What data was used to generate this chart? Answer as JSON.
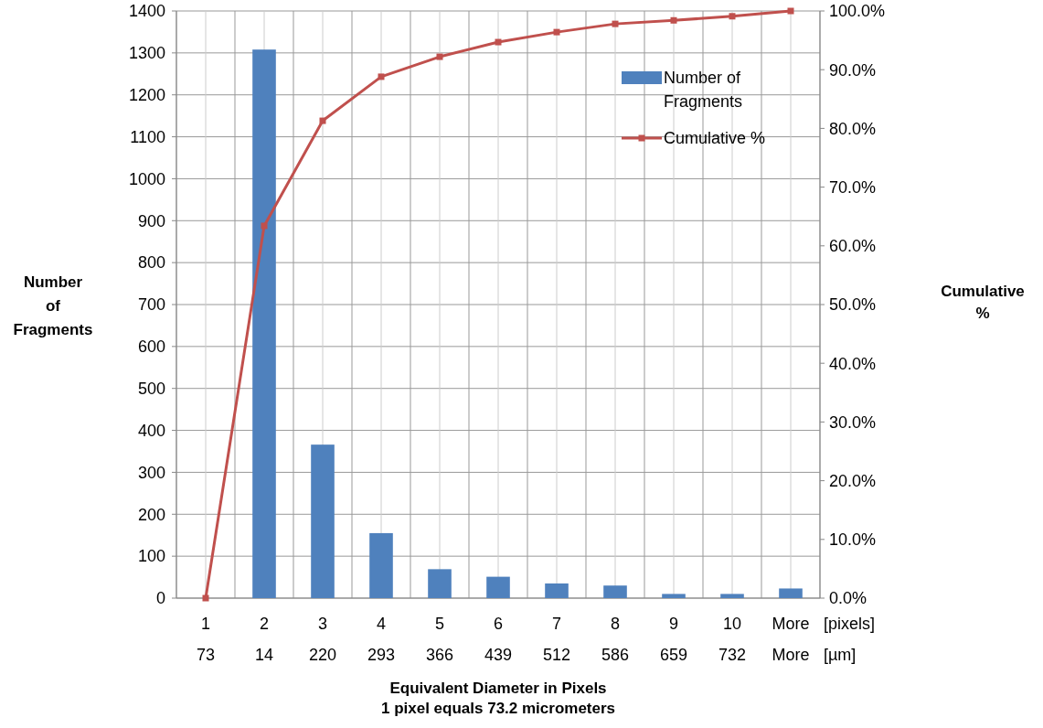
{
  "chart_data": {
    "type": "bar",
    "categories": [
      "1\n73",
      "2\n14",
      "3\n220",
      "4\n293",
      "5\n366",
      "6\n439",
      "7\n512",
      "8\n586",
      "9\n659",
      "10\n732",
      "More\nMore"
    ],
    "series": [
      {
        "name": "Number of Fragments",
        "color": "#4f81bd",
        "values": [
          null,
          1308,
          366,
          155,
          69,
          51,
          35,
          30,
          10,
          10,
          23
        ]
      },
      {
        "name": "Cumulative %",
        "type": "line",
        "axis": "y2",
        "color": "#c0504d",
        "marker": "square",
        "values": [
          0,
          63.4,
          81.3,
          88.8,
          92.2,
          94.7,
          96.4,
          97.8,
          98.4,
          99.1,
          100
        ]
      }
    ],
    "xlabel": "Equivalent Diameter in Pixels\n1 pixel equals 73.2 micrometers",
    "ylabel": "Number\nof\nFragments",
    "y2label": "Cumulative\n%",
    "annotations": [
      "[pixels]",
      "[µm]"
    ],
    "ylim": [
      0,
      1400
    ],
    "yticks": [
      0,
      100,
      200,
      300,
      400,
      500,
      600,
      700,
      800,
      900,
      1000,
      1100,
      1200,
      1300,
      1400
    ],
    "y2lim": [
      0,
      100
    ],
    "y2ticks": [
      {
        "value": 0,
        "label": "0.0%"
      },
      {
        "value": 10,
        "label": "10.0%"
      },
      {
        "value": 20,
        "label": "20.0%"
      },
      {
        "value": 30,
        "label": "30.0%"
      },
      {
        "value": 40,
        "label": "40.0%"
      },
      {
        "value": 50,
        "label": "50.0%"
      },
      {
        "value": 60,
        "label": "60.0%"
      },
      {
        "value": 70,
        "label": "70.0%"
      },
      {
        "value": 80,
        "label": "80.0%"
      },
      {
        "value": 90,
        "label": "90.0%"
      },
      {
        "value": 100,
        "label": "100.0%"
      }
    ],
    "grid": true,
    "legend": "top right"
  }
}
